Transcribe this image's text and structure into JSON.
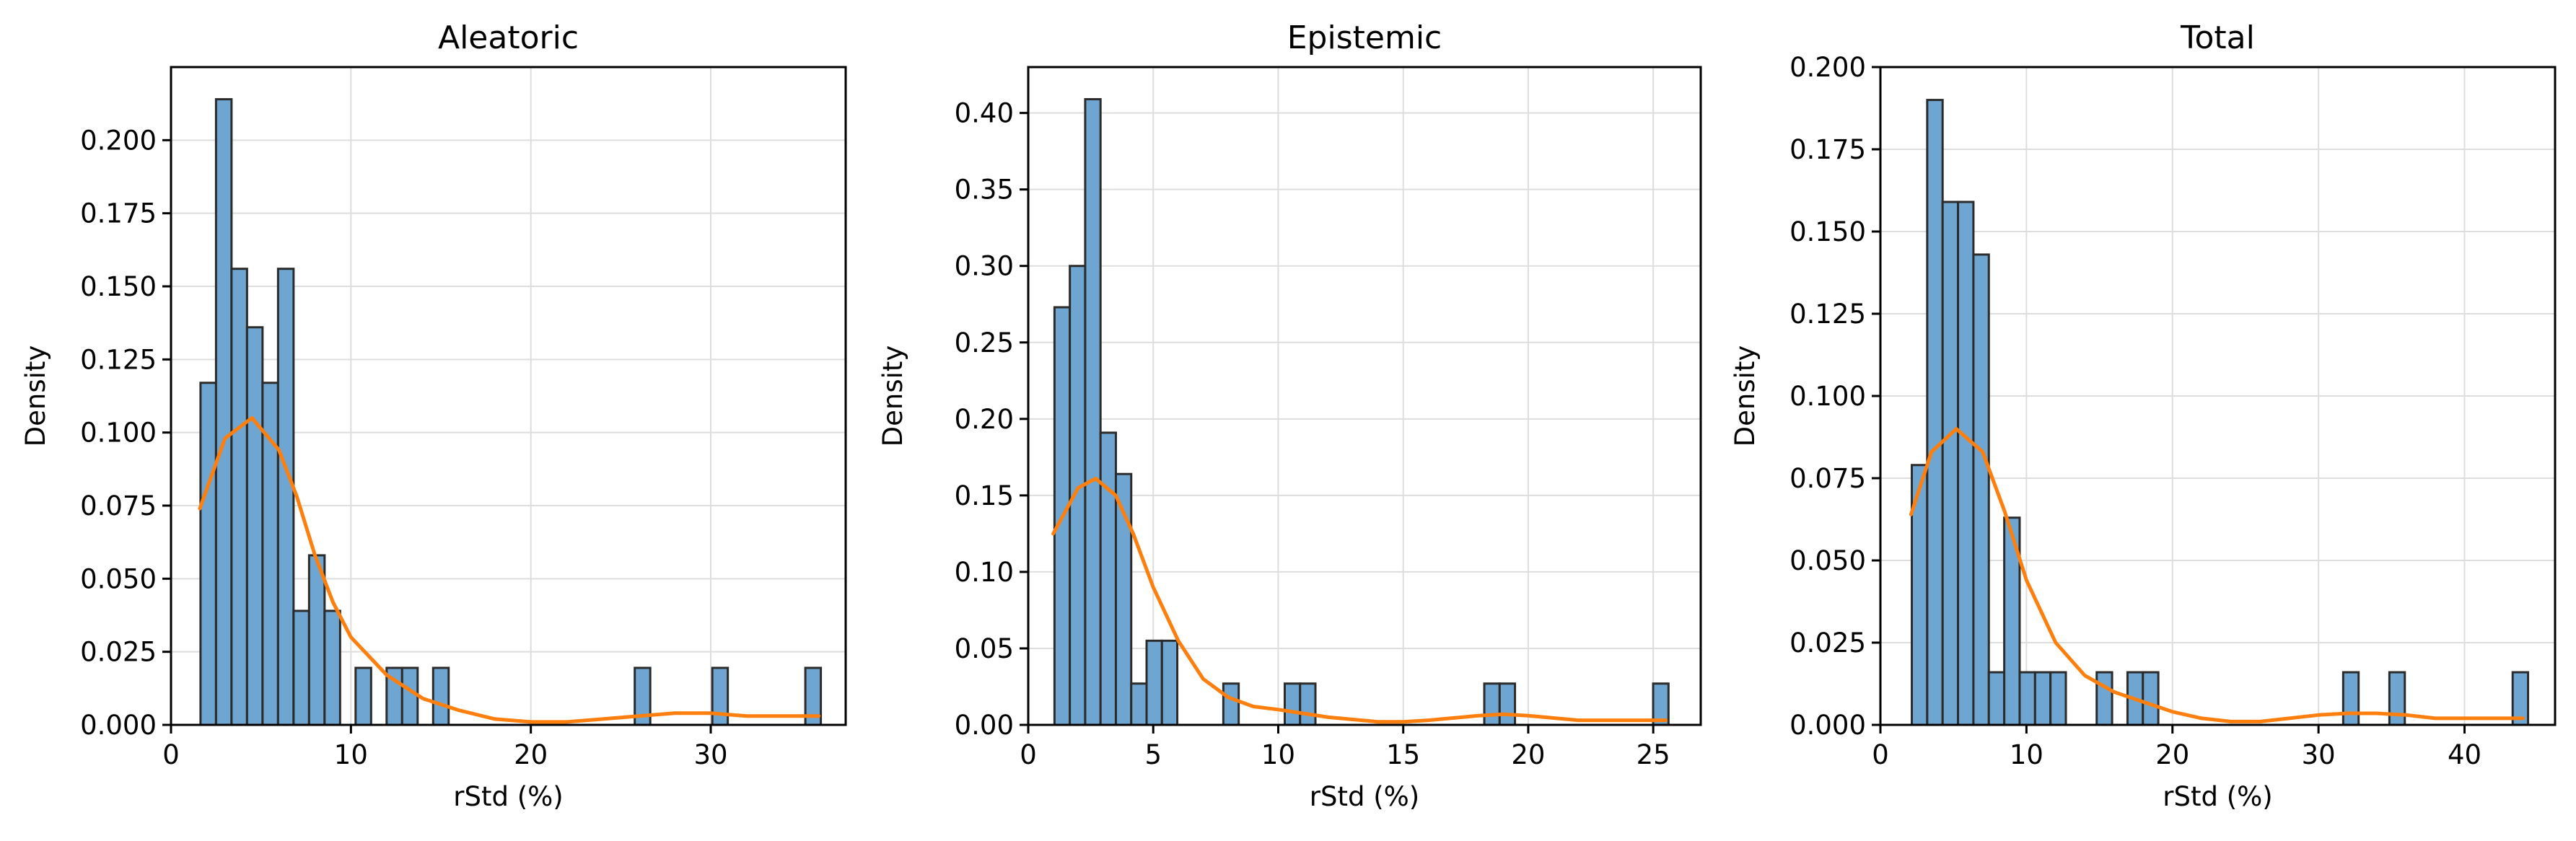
{
  "chart_data": [
    {
      "type": "histogram",
      "title": "Aleatoric",
      "xlabel": "rStd (%)",
      "ylabel": "Density",
      "xlim": [
        0,
        37.5
      ],
      "ylim": [
        0,
        0.225
      ],
      "x_ticks": [
        0,
        10,
        20,
        30
      ],
      "y_ticks": [
        0.0,
        0.025,
        0.05,
        0.075,
        0.1,
        0.125,
        0.15,
        0.175,
        0.2
      ],
      "y_tick_labels": [
        "0.000",
        "0.025",
        "0.050",
        "0.075",
        "0.100",
        "0.125",
        "0.150",
        "0.175",
        "0.200"
      ],
      "grid": true,
      "bar_color": "#6fa6d1",
      "bin_start": 1.64,
      "bin_width": 0.862,
      "densities": [
        0.117,
        0.214,
        0.156,
        0.136,
        0.117,
        0.156,
        0.039,
        0.058,
        0.039,
        0.0,
        0.0195,
        0.0,
        0.0195,
        0.0195,
        0.0,
        0.0195,
        0.0,
        0.0,
        0.0,
        0.0,
        0.0,
        0.0,
        0.0,
        0.0,
        0.0,
        0.0,
        0.0,
        0.0,
        0.0195,
        0.0,
        0.0,
        0.0,
        0.0,
        0.0195,
        0.0,
        0.0,
        0.0,
        0.0,
        0.0,
        0.0195
      ],
      "kde_color": "#ff7f0e",
      "kde": {
        "x": [
          1.6,
          3,
          4.5,
          6,
          7,
          8,
          9,
          10,
          12,
          14,
          16,
          18,
          20,
          22,
          24,
          26,
          28,
          30,
          32,
          34,
          36
        ],
        "y": [
          0.074,
          0.098,
          0.105,
          0.094,
          0.078,
          0.058,
          0.042,
          0.03,
          0.017,
          0.009,
          0.005,
          0.002,
          0.001,
          0.001,
          0.002,
          0.003,
          0.004,
          0.004,
          0.003,
          0.003,
          0.003
        ]
      }
    },
    {
      "type": "histogram",
      "title": "Epistemic",
      "xlabel": "rStd (%)",
      "ylabel": "Density",
      "xlim": [
        0,
        26.9
      ],
      "ylim": [
        0,
        0.43
      ],
      "x_ticks": [
        0,
        5,
        10,
        15,
        20,
        25
      ],
      "y_ticks": [
        0.0,
        0.05,
        0.1,
        0.15,
        0.2,
        0.25,
        0.3,
        0.35,
        0.4
      ],
      "y_tick_labels": [
        "0.00",
        "0.05",
        "0.10",
        "0.15",
        "0.20",
        "0.25",
        "0.30",
        "0.35",
        "0.40"
      ],
      "grid": true,
      "bar_color": "#6fa6d1",
      "bin_start": 1.05,
      "bin_width": 0.614,
      "densities": [
        0.273,
        0.3,
        0.409,
        0.191,
        0.164,
        0.027,
        0.055,
        0.055,
        0.0,
        0.0,
        0.0,
        0.027,
        0.0,
        0.0,
        0.0,
        0.027,
        0.027,
        0.0,
        0.0,
        0.0,
        0.0,
        0.0,
        0.0,
        0.0,
        0.0,
        0.0,
        0.0,
        0.0,
        0.027,
        0.027,
        0.0,
        0.0,
        0.0,
        0.0,
        0.0,
        0.0,
        0.0,
        0.0,
        0.0,
        0.027
      ],
      "kde_color": "#ff7f0e",
      "kde": {
        "x": [
          1.0,
          2,
          2.7,
          3.5,
          4.2,
          5,
          6,
          7,
          8,
          9,
          10,
          12,
          14,
          15,
          16,
          18,
          19,
          20,
          22,
          24,
          25.5
        ],
        "y": [
          0.125,
          0.155,
          0.161,
          0.15,
          0.125,
          0.09,
          0.055,
          0.03,
          0.018,
          0.012,
          0.01,
          0.005,
          0.002,
          0.002,
          0.003,
          0.006,
          0.007,
          0.006,
          0.003,
          0.003,
          0.003
        ]
      }
    },
    {
      "type": "histogram",
      "title": "Total",
      "xlabel": "rStd (%)",
      "ylabel": "Density",
      "xlim": [
        0,
        46.2
      ],
      "ylim": [
        0,
        0.2
      ],
      "x_ticks": [
        0,
        10,
        20,
        30,
        40
      ],
      "y_ticks": [
        0.0,
        0.025,
        0.05,
        0.075,
        0.1,
        0.125,
        0.15,
        0.175,
        0.2
      ],
      "y_tick_labels": [
        "0.000",
        "0.025",
        "0.050",
        "0.075",
        "0.100",
        "0.125",
        "0.150",
        "0.175",
        "0.200"
      ],
      "grid": true,
      "bar_color": "#6fa6d1",
      "bin_start": 2.15,
      "bin_width": 1.055,
      "densities": [
        0.079,
        0.19,
        0.159,
        0.159,
        0.143,
        0.016,
        0.063,
        0.016,
        0.016,
        0.016,
        0.0,
        0.0,
        0.016,
        0.0,
        0.016,
        0.016,
        0.0,
        0.0,
        0.0,
        0.0,
        0.0,
        0.0,
        0.0,
        0.0,
        0.0,
        0.0,
        0.0,
        0.0,
        0.016,
        0.0,
        0.0,
        0.016,
        0.0,
        0.0,
        0.0,
        0.0,
        0.0,
        0.0,
        0.0,
        0.016
      ],
      "kde_color": "#ff7f0e",
      "kde": {
        "x": [
          2.1,
          3.5,
          5.2,
          7,
          8.5,
          10,
          12,
          14,
          16,
          18,
          20,
          22,
          24,
          26,
          28,
          30,
          32,
          34,
          36,
          38,
          40,
          42,
          44
        ],
        "y": [
          0.064,
          0.083,
          0.09,
          0.083,
          0.065,
          0.044,
          0.025,
          0.015,
          0.01,
          0.007,
          0.004,
          0.002,
          0.001,
          0.001,
          0.002,
          0.003,
          0.0035,
          0.0035,
          0.003,
          0.002,
          0.002,
          0.002,
          0.002
        ]
      }
    }
  ]
}
